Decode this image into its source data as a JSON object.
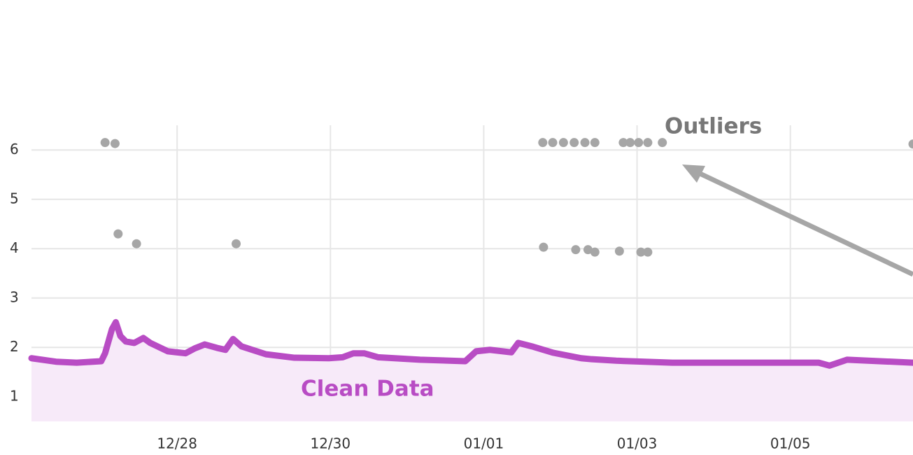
{
  "chart_data": {
    "type": "line",
    "xlim": [
      26.1,
      37.6
    ],
    "xticks": [
      {
        "value": 28,
        "label": "12/28"
      },
      {
        "value": 30,
        "label": "12/30"
      },
      {
        "value": 32,
        "label": "01/01"
      },
      {
        "value": 34,
        "label": "01/03"
      },
      {
        "value": 36,
        "label": "01/05"
      }
    ],
    "ylim": [
      0.5,
      6.5
    ],
    "yticks": [
      1,
      2,
      3,
      4,
      5,
      6
    ],
    "grid": true,
    "series": [
      {
        "name": "Clean Data",
        "type": "line",
        "color": "#b84cc4",
        "fill": "#f7eaf9",
        "x": [
          26.1,
          26.42,
          26.69,
          27.01,
          27.06,
          27.15,
          27.2,
          27.26,
          27.33,
          27.44,
          27.56,
          27.65,
          27.88,
          28.11,
          28.23,
          28.36,
          28.52,
          28.63,
          28.73,
          28.84,
          29.16,
          29.53,
          29.98,
          30.16,
          30.3,
          30.44,
          30.62,
          31.17,
          31.76,
          31.9,
          32.08,
          32.36,
          32.45,
          32.63,
          32.91,
          33.27,
          33.41,
          33.73,
          34.46,
          35.28,
          36.37,
          36.51,
          36.74,
          37.6
        ],
        "values": [
          1.78,
          1.71,
          1.69,
          1.72,
          1.88,
          2.37,
          2.51,
          2.23,
          2.12,
          2.09,
          2.19,
          2.09,
          1.92,
          1.88,
          1.98,
          2.06,
          1.99,
          1.95,
          2.17,
          2.02,
          1.86,
          1.79,
          1.78,
          1.8,
          1.88,
          1.88,
          1.8,
          1.75,
          1.72,
          1.92,
          1.95,
          1.9,
          2.09,
          2.02,
          1.89,
          1.78,
          1.76,
          1.73,
          1.69,
          1.69,
          1.69,
          1.63,
          1.75,
          1.69
        ]
      },
      {
        "name": "Outliers",
        "type": "scatter",
        "color": "#a6a6a6",
        "x": [
          27.06,
          27.19,
          27.23,
          27.47,
          28.77,
          32.77,
          32.9,
          33.04,
          33.18,
          33.32,
          33.45,
          33.82,
          33.91,
          34.02,
          34.14,
          34.33,
          37.6,
          32.78,
          33.2,
          33.36,
          33.45,
          33.77,
          34.05,
          34.14
        ],
        "values": [
          6.15,
          6.13,
          4.3,
          4.1,
          4.1,
          6.15,
          6.15,
          6.15,
          6.15,
          6.15,
          6.15,
          6.15,
          6.15,
          6.15,
          6.15,
          6.15,
          6.12,
          4.03,
          3.98,
          3.98,
          3.93,
          3.95,
          3.93,
          3.93
        ]
      }
    ]
  }
}
